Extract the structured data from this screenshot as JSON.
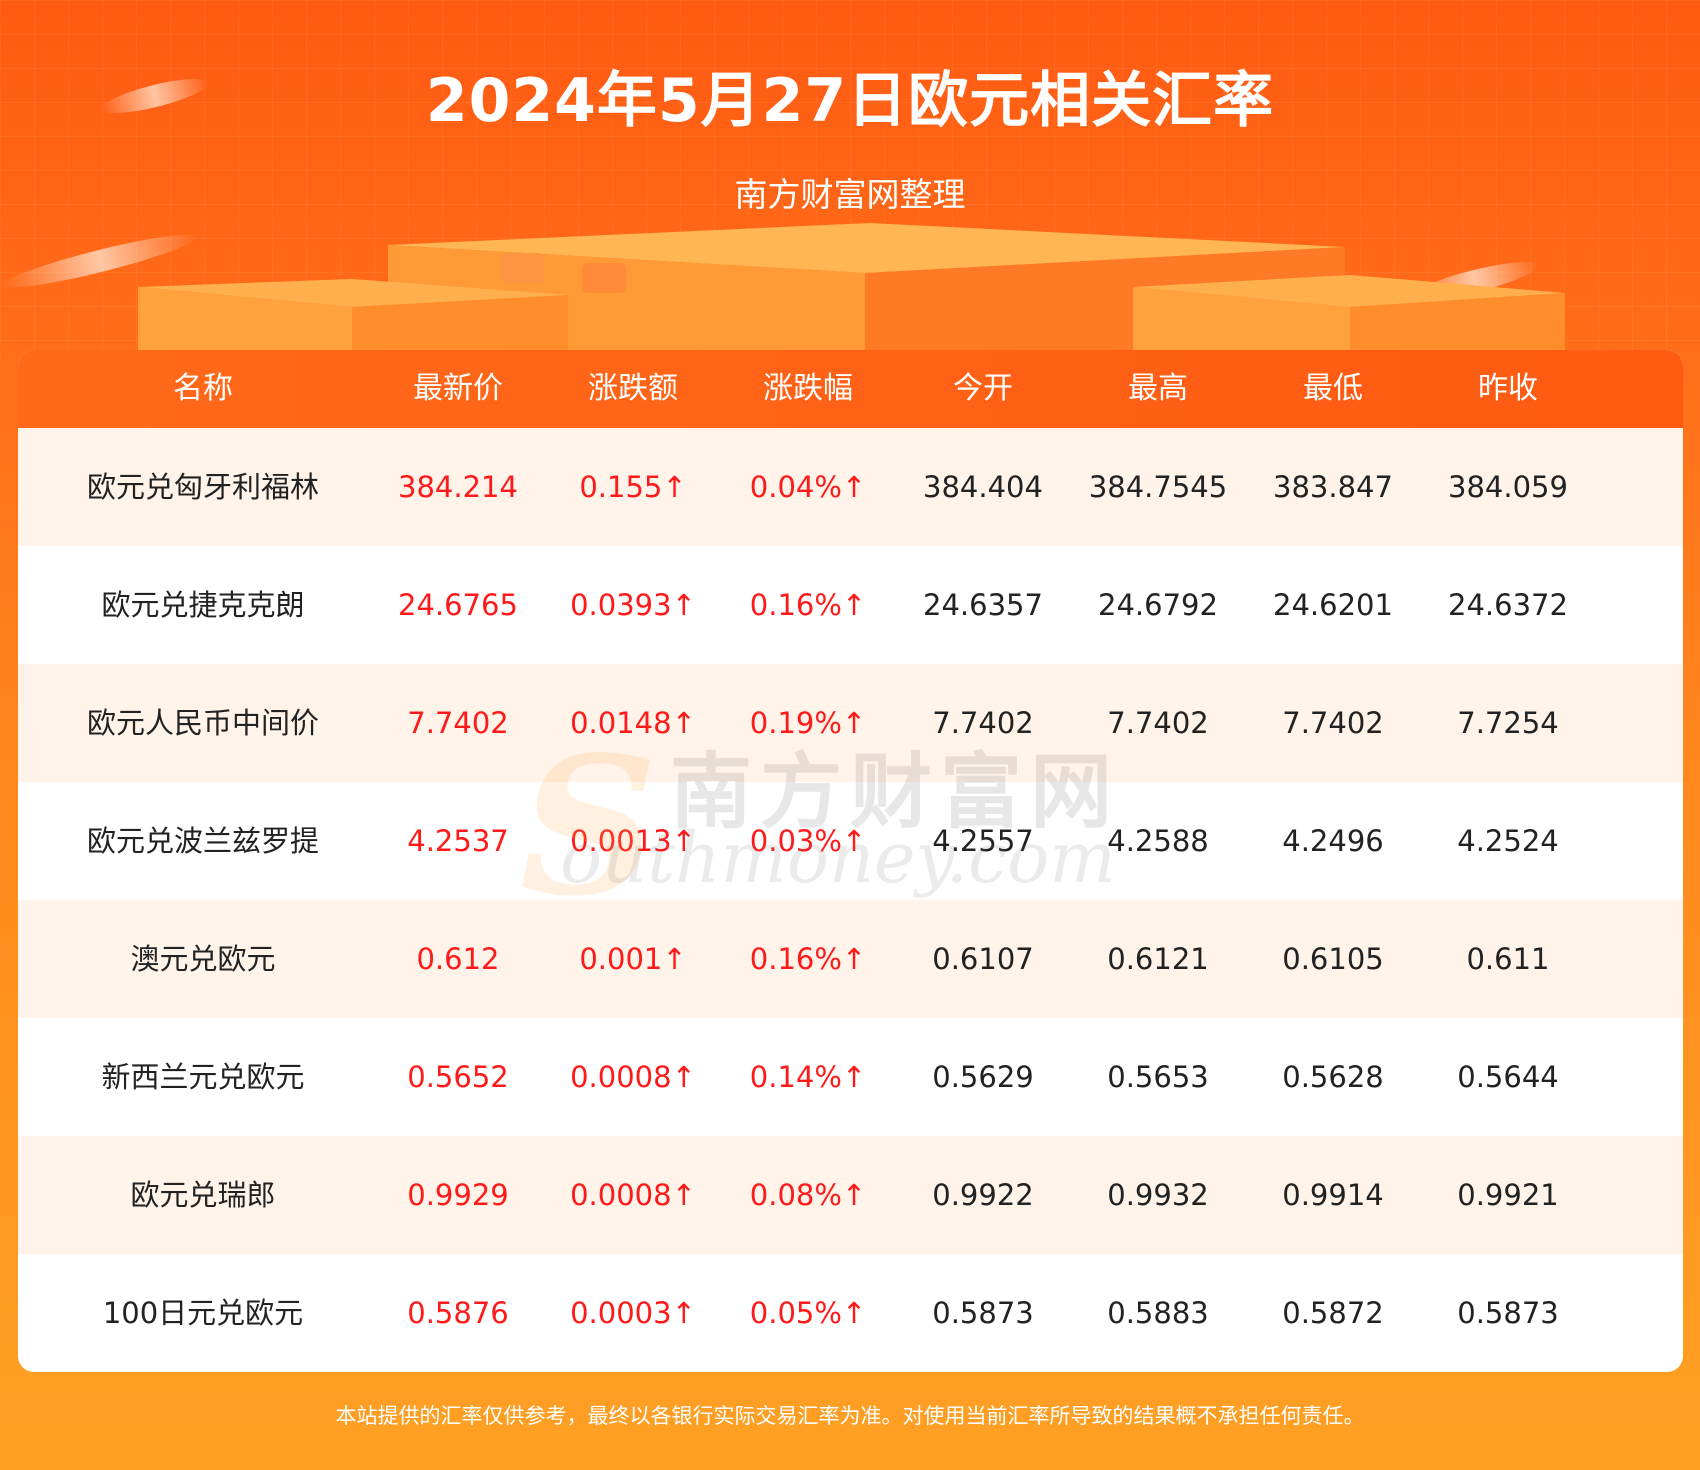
{
  "header": {
    "title": "2024年5月27日欧元相关汇率",
    "subtitle": "南方财富网整理"
  },
  "table": {
    "columns": [
      "名称",
      "最新价",
      "涨跌额",
      "涨跌幅",
      "今开",
      "最高",
      "最低",
      "昨收"
    ],
    "rows": [
      [
        "欧元兑匈牙利福林",
        "384.214",
        "0.155↑",
        "0.04%↑",
        "384.404",
        "384.7545",
        "383.847",
        "384.059"
      ],
      [
        "欧元兑捷克克朗",
        "24.6765",
        "0.0393↑",
        "0.16%↑",
        "24.6357",
        "24.6792",
        "24.6201",
        "24.6372"
      ],
      [
        "欧元人民币中间价",
        "7.7402",
        "0.0148↑",
        "0.19%↑",
        "7.7402",
        "7.7402",
        "7.7402",
        "7.7254"
      ],
      [
        "欧元兑波兰兹罗提",
        "4.2537",
        "0.0013↑",
        "0.03%↑",
        "4.2557",
        "4.2588",
        "4.2496",
        "4.2524"
      ],
      [
        "澳元兑欧元",
        "0.612",
        "0.001↑",
        "0.16%↑",
        "0.6107",
        "0.6121",
        "0.6105",
        "0.611"
      ],
      [
        "新西兰元兑欧元",
        "0.5652",
        "0.0008↑",
        "0.14%↑",
        "0.5629",
        "0.5653",
        "0.5628",
        "0.5644"
      ],
      [
        "欧元兑瑞郎",
        "0.9929",
        "0.0008↑",
        "0.08%↑",
        "0.9922",
        "0.9932",
        "0.9914",
        "0.9921"
      ],
      [
        "100日元兑欧元",
        "0.5876",
        "0.0003↑",
        "0.05%↑",
        "0.5873",
        "0.5883",
        "0.5872",
        "0.5873"
      ]
    ]
  },
  "watermark": {
    "cn": "南方财富网",
    "en": "outhmoney.com",
    "letter": "S"
  },
  "footer": {
    "disclaimer": "本站提供的汇率仅供参考，最终以各银行实际交易汇率为准。对使用当前汇率所导致的结果概不承担任何责任。"
  },
  "colors": {
    "up": "#ff1a1a",
    "header_orange": "#ff5a12",
    "row_shade": "#fff3ea"
  }
}
